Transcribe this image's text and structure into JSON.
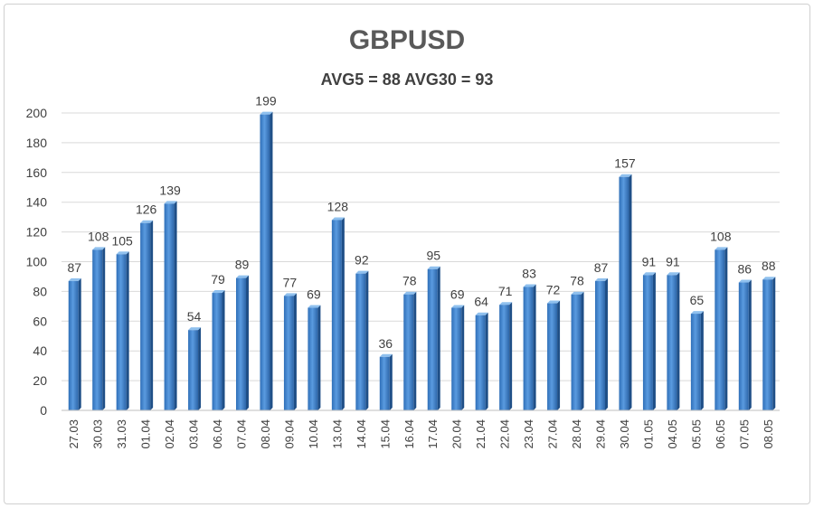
{
  "chart_data": {
    "type": "bar",
    "title": "GBPUSD",
    "subtitle": "AVG5 = 88 AVG30 = 93",
    "xlabel": "",
    "ylabel": "",
    "ylim": [
      0,
      200
    ],
    "yticks": [
      0,
      20,
      40,
      60,
      80,
      100,
      120,
      140,
      160,
      180,
      200
    ],
    "grid": true,
    "legend": "none",
    "bar_color": "#4a8fd6",
    "categories": [
      "27.03",
      "30.03",
      "31.03",
      "01.04",
      "02.04",
      "03.04",
      "06.04",
      "07.04",
      "08.04",
      "09.04",
      "10.04",
      "13.04",
      "14.04",
      "15.04",
      "16.04",
      "17.04",
      "20.04",
      "21.04",
      "22.04",
      "23.04",
      "27.04",
      "28.04",
      "29.04",
      "30.04",
      "01.05",
      "04.05",
      "05.05",
      "06.05",
      "07.05",
      "08.05"
    ],
    "values": [
      87,
      108,
      105,
      126,
      139,
      54,
      79,
      89,
      199,
      77,
      69,
      128,
      92,
      36,
      78,
      95,
      69,
      64,
      71,
      83,
      72,
      78,
      87,
      157,
      91,
      91,
      65,
      108,
      86,
      88
    ]
  }
}
